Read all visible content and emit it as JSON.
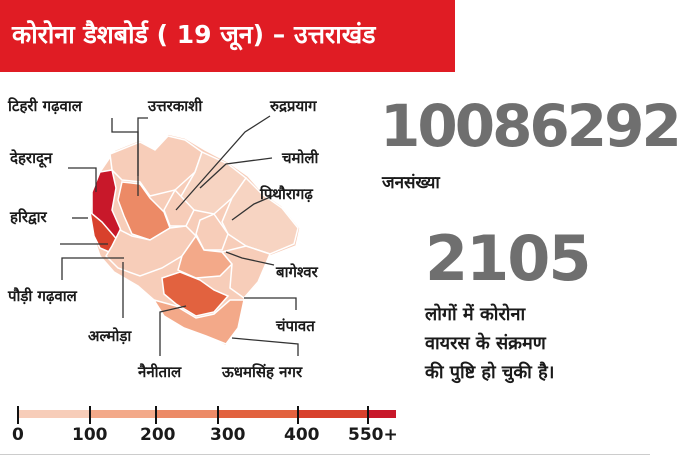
{
  "header": {
    "title": "कोरोना डैशबोर्ड ( 19 जून) – उत्तराखंड",
    "background_color": "#e01c24",
    "text_color": "#ffffff"
  },
  "population": {
    "value": "10086292",
    "label": "जनसंख्या"
  },
  "cases": {
    "value": "2105",
    "description_lines": [
      "लोगों में कोरोना",
      "वायरस के संक्रमण",
      "की पुष्टि हो चुकी है।"
    ]
  },
  "districts": [
    {
      "name": "टिहरी गढ़वाल",
      "cases_range": "100-200"
    },
    {
      "name": "उत्तरकाशी",
      "cases_range": "0-100"
    },
    {
      "name": "रुद्रप्रयाग",
      "cases_range": "0-100"
    },
    {
      "name": "चमोली",
      "cases_range": "0-100"
    },
    {
      "name": "पिथौरागढ़",
      "cases_range": "0-100"
    },
    {
      "name": "देहरादून",
      "cases_range": "550+"
    },
    {
      "name": "हरिद्वार",
      "cases_range": "400-550"
    },
    {
      "name": "बागेश्वर",
      "cases_range": "0-100"
    },
    {
      "name": "पौड़ी गढ़वाल",
      "cases_range": "100-200"
    },
    {
      "name": "चंपावत",
      "cases_range": "100-200"
    },
    {
      "name": "अल्मोड़ा",
      "cases_range": "0-100"
    },
    {
      "name": "नैनीताल",
      "cases_range": "300-400"
    },
    {
      "name": "ऊधमसिंह नगर",
      "cases_range": "200-300"
    }
  ],
  "legend": {
    "ticks": [
      "0",
      "100",
      "200",
      "300",
      "400",
      "550+"
    ],
    "colors": [
      "#f7cdb9",
      "#f3a989",
      "#ec8a66",
      "#e2623f",
      "#d8412c",
      "#c8182a"
    ]
  }
}
